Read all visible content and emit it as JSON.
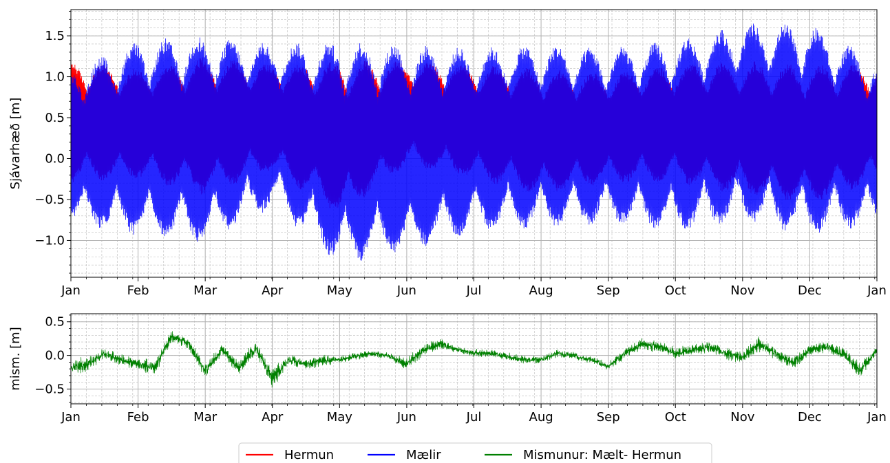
{
  "chart_data": [
    {
      "type": "line",
      "title": "",
      "xlabel": "",
      "ylabel": "Sjávarhæð [m]",
      "ylim": [
        -1.45,
        1.82
      ],
      "yticks": [
        -1.0,
        -0.5,
        0.0,
        0.5,
        1.0,
        1.5
      ],
      "ytick_labels": [
        "−1.0",
        "−0.5",
        "0.0",
        "0.5",
        "1.0",
        "1.5"
      ],
      "x_tick_labels": [
        "Jan",
        "Feb",
        "Mar",
        "Apr",
        "May",
        "Jun",
        "Jul",
        "Aug",
        "Sep",
        "Oct",
        "Nov",
        "Dec",
        "Jan"
      ],
      "grid": true,
      "series": [
        {
          "name": "Hermun",
          "color": "#ff0000",
          "envelope_min": [
            -0.3,
            -0.25,
            -0.45,
            -0.15,
            -0.7,
            -0.1,
            -0.25,
            -0.45,
            -0.3,
            -0.3,
            -0.45,
            -0.55,
            -0.3
          ],
          "envelope_max": [
            1.2,
            1.1,
            1.25,
            1.15,
            1.2,
            1.2,
            1.15,
            1.1,
            1.05,
            1.15,
            1.2,
            1.15,
            1.15
          ]
        },
        {
          "name": "Mælir",
          "color": "#0000ff",
          "envelope_min": [
            -0.8,
            -0.95,
            -1.05,
            -0.6,
            -1.3,
            -1.15,
            -0.9,
            -0.85,
            -0.8,
            -0.9,
            -0.8,
            -0.95,
            -0.8
          ],
          "envelope_max": [
            1.1,
            1.45,
            1.5,
            1.4,
            1.45,
            1.4,
            1.35,
            1.4,
            1.35,
            1.45,
            1.65,
            1.65,
            1.2
          ]
        }
      ]
    },
    {
      "type": "line",
      "title": "",
      "xlabel": "",
      "ylabel": "mism. [m]",
      "ylim": [
        -0.72,
        0.62
      ],
      "yticks": [
        -0.5,
        0.0,
        0.5
      ],
      "ytick_labels": [
        "−0.5",
        "0.0",
        "0.5"
      ],
      "x_tick_labels": [
        "Jan",
        "Feb",
        "Mar",
        "Apr",
        "May",
        "Jun",
        "Jul",
        "Aug",
        "Sep",
        "Oct",
        "Nov",
        "Dec",
        "Jan"
      ],
      "grid": true,
      "series": [
        {
          "name": "Mismunur: Mælt- Hermun",
          "color": "#008000",
          "x_months": [
            0,
            0.25,
            0.5,
            0.75,
            1.0,
            1.25,
            1.5,
            1.75,
            2.0,
            2.25,
            2.5,
            2.75,
            3.0,
            3.25,
            3.5,
            3.75,
            4.0,
            4.25,
            4.5,
            4.75,
            5.0,
            5.25,
            5.5,
            5.75,
            6.0,
            6.25,
            6.5,
            6.75,
            7.0,
            7.25,
            7.5,
            7.75,
            8.0,
            8.25,
            8.5,
            8.75,
            9.0,
            9.25,
            9.5,
            9.75,
            10.0,
            10.25,
            10.5,
            10.75,
            11.0,
            11.25,
            11.5,
            11.75,
            12.0
          ],
          "mean": [
            -0.15,
            -0.1,
            0.05,
            -0.05,
            -0.1,
            -0.15,
            0.3,
            0.2,
            -0.2,
            0.1,
            -0.15,
            0.15,
            -0.3,
            -0.05,
            -0.1,
            -0.05,
            -0.05,
            0.0,
            0.05,
            0.0,
            -0.1,
            0.1,
            0.2,
            0.1,
            0.05,
            0.05,
            0.0,
            -0.05,
            -0.05,
            0.05,
            0.0,
            -0.05,
            -0.15,
            0.05,
            0.2,
            0.15,
            0.05,
            0.1,
            0.15,
            0.05,
            0.0,
            0.2,
            0.05,
            -0.1,
            0.1,
            0.15,
            0.05,
            -0.2,
            0.1
          ],
          "spread": [
            0.2,
            0.2,
            0.15,
            0.15,
            0.15,
            0.2,
            0.15,
            0.15,
            0.2,
            0.15,
            0.2,
            0.2,
            0.25,
            0.15,
            0.15,
            0.15,
            0.1,
            0.1,
            0.1,
            0.1,
            0.15,
            0.15,
            0.15,
            0.1,
            0.1,
            0.1,
            0.1,
            0.1,
            0.1,
            0.1,
            0.1,
            0.1,
            0.1,
            0.15,
            0.15,
            0.15,
            0.15,
            0.15,
            0.15,
            0.15,
            0.15,
            0.2,
            0.15,
            0.15,
            0.15,
            0.15,
            0.15,
            0.2,
            0.1
          ]
        }
      ]
    }
  ],
  "legend": {
    "placement": "bottom-center",
    "entries": [
      {
        "label": "Hermun",
        "color": "#ff0000"
      },
      {
        "label": "Mælir",
        "color": "#0000ff"
      },
      {
        "label": "Mismunur: Mælt- Hermun",
        "color": "#008000"
      }
    ]
  }
}
